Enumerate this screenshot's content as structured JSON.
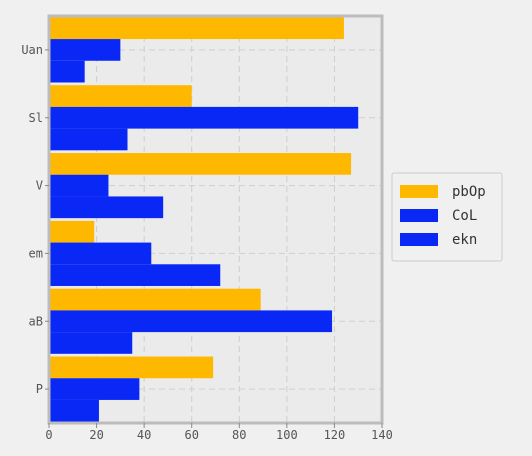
{
  "chart_data": {
    "type": "bar",
    "orientation": "horizontal",
    "categories": [
      "Uan",
      "Sl",
      "V",
      "em",
      "aB",
      "P"
    ],
    "series": [
      {
        "name": "pbOp",
        "color": "#ffb800",
        "values": [
          124,
          60,
          127,
          19,
          89,
          69
        ]
      },
      {
        "name": "CoL",
        "color": "#0a28f5",
        "values": [
          30,
          130,
          25,
          43,
          119,
          38
        ]
      },
      {
        "name": "ekn",
        "color": "#0a28f5",
        "values": [
          15,
          33,
          48,
          72,
          35,
          21
        ]
      }
    ],
    "xlim": [
      0,
      140
    ],
    "xticks": [
      "0",
      "20",
      "40",
      "60",
      "80",
      "100",
      "120",
      "140"
    ],
    "grid": true,
    "legend_position": "right",
    "title": "",
    "xlabel": "",
    "ylabel": ""
  }
}
